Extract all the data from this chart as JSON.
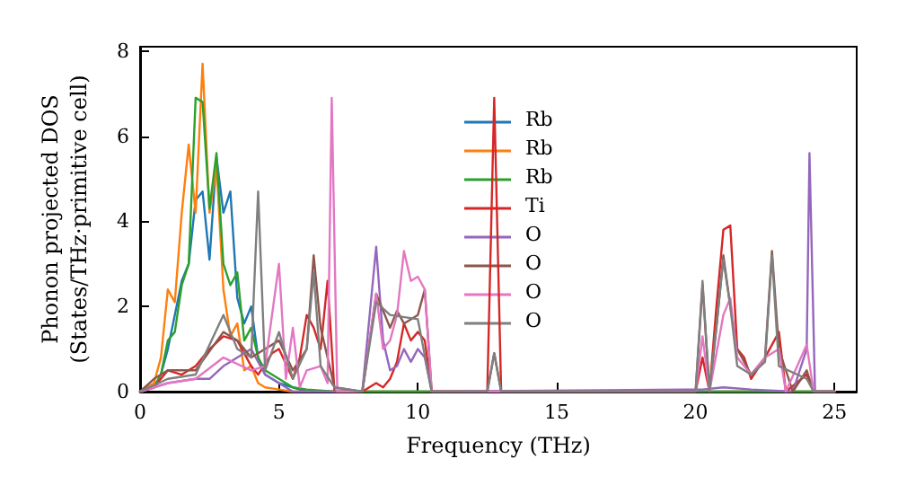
{
  "chart_data": {
    "type": "line",
    "xlabel": "Frequency (THz)",
    "ylabel": "Phonon projected DOS\n(States/THz·primitive cell)",
    "xlim": [
      0,
      25.8
    ],
    "ylim": [
      0,
      8.1
    ],
    "xticks": [
      0,
      5,
      10,
      15,
      20,
      25
    ],
    "yticks": [
      0,
      2,
      4,
      6,
      8
    ],
    "grid": false,
    "legend": "top",
    "marker": "none",
    "line_style": "solid",
    "series": [
      {
        "name": "Rb",
        "color": "#1f77b4",
        "x": [
          0,
          0.5,
          0.75,
          1,
          1.25,
          1.5,
          1.75,
          2,
          2.25,
          2.5,
          2.75,
          3,
          3.25,
          3.5,
          3.75,
          4,
          4.25,
          4.5,
          4.75,
          5,
          5.5,
          6,
          25
        ],
        "values": [
          0,
          0.1,
          0.4,
          1.0,
          1.8,
          2.6,
          3.0,
          4.5,
          4.7,
          3.1,
          5.5,
          4.2,
          4.7,
          2.2,
          1.6,
          2.0,
          0.8,
          0.4,
          0.3,
          0.2,
          0.1,
          0,
          0
        ]
      },
      {
        "name": "Rb",
        "color": "#ff7f0e",
        "x": [
          0,
          0.5,
          0.75,
          1,
          1.25,
          1.5,
          1.75,
          2,
          2.25,
          2.5,
          2.75,
          3,
          3.25,
          3.5,
          3.75,
          4,
          4.25,
          4.5,
          5,
          5.5,
          6,
          25
        ],
        "values": [
          0,
          0.2,
          0.8,
          2.4,
          2.1,
          4.2,
          5.8,
          4.2,
          7.7,
          4.2,
          5.3,
          2.4,
          1.3,
          1.6,
          0.5,
          0.6,
          0.2,
          0.1,
          0.05,
          0,
          0,
          0
        ]
      },
      {
        "name": "Rb",
        "color": "#2ca02c",
        "x": [
          0,
          0.5,
          0.75,
          1,
          1.25,
          1.5,
          1.75,
          2,
          2.25,
          2.5,
          2.75,
          3,
          3.25,
          3.5,
          3.75,
          4,
          4.25,
          4.5,
          5,
          5.5,
          6,
          7,
          25
        ],
        "values": [
          0,
          0.1,
          0.4,
          1.2,
          1.4,
          2.5,
          3.0,
          6.9,
          6.8,
          4.3,
          5.6,
          3.0,
          2.5,
          2.8,
          1.2,
          1.5,
          0.8,
          0.5,
          0.3,
          0.1,
          0.05,
          0,
          0
        ]
      },
      {
        "name": "Ti",
        "color": "#d62728",
        "x": [
          0,
          0.5,
          1,
          1.5,
          2,
          2.5,
          3,
          3.5,
          4,
          4.25,
          4.75,
          5,
          5.5,
          5.75,
          6,
          6.25,
          6.5,
          6.75,
          7,
          8,
          8.5,
          8.75,
          9,
          9.25,
          9.5,
          9.75,
          10,
          10.25,
          10.5,
          12.5,
          12.75,
          13,
          20,
          20.25,
          20.5,
          20.75,
          21,
          21.25,
          21.5,
          21.75,
          22,
          22.5,
          23,
          23.25,
          24,
          24.25,
          25
        ],
        "values": [
          0,
          0.1,
          0.5,
          0.4,
          0.6,
          1.0,
          1.3,
          1.2,
          0.6,
          0.4,
          0.9,
          1.0,
          0.3,
          0.8,
          1.8,
          1.5,
          1.0,
          2.6,
          0,
          0,
          0.2,
          0.1,
          0.3,
          0.7,
          1.6,
          1.2,
          1.4,
          1.2,
          0,
          0,
          6.9,
          0,
          0,
          0.8,
          0,
          2.0,
          3.8,
          3.9,
          1.0,
          0.8,
          0.3,
          0.8,
          1.4,
          0,
          0.4,
          0,
          0
        ]
      },
      {
        "name": "O",
        "color": "#9467bd",
        "x": [
          0,
          1,
          2,
          2.5,
          3,
          3.5,
          4,
          4.5,
          5,
          5.5,
          8,
          8.5,
          8.75,
          9,
          9.25,
          9.5,
          9.75,
          10,
          10.25,
          10.5,
          20.25,
          21,
          22,
          23.5,
          24,
          24.1,
          24.3,
          25
        ],
        "values": [
          0,
          0.2,
          0.3,
          0.3,
          0.6,
          0.8,
          1.0,
          0.4,
          0.2,
          0,
          0,
          3.4,
          1.2,
          0.5,
          0.6,
          1.0,
          0.7,
          1.0,
          0.8,
          0,
          0.05,
          0.1,
          0.05,
          0,
          1.0,
          5.6,
          0,
          0
        ]
      },
      {
        "name": "O",
        "color": "#8c564b",
        "x": [
          0,
          0.5,
          1,
          2,
          3,
          3.5,
          4,
          4.5,
          5,
          5.5,
          6,
          6.25,
          6.5,
          7,
          8,
          8.5,
          9,
          9.25,
          9.5,
          10,
          10.25,
          10.5,
          12.5,
          12.75,
          13,
          20,
          20.25,
          20.5,
          20.75,
          21,
          21.25,
          21.5,
          22,
          22.5,
          22.75,
          23,
          23.5,
          24,
          24.25,
          25
        ],
        "values": [
          0,
          0.3,
          0.5,
          0.5,
          1.4,
          1.2,
          0.8,
          1.0,
          1.2,
          0.5,
          1.0,
          3.2,
          1.5,
          0.1,
          0,
          2.3,
          1.5,
          1.9,
          1.6,
          1.8,
          2.4,
          0,
          0,
          0.9,
          0,
          0,
          2.5,
          0,
          1.5,
          3.2,
          2.0,
          1.0,
          0.4,
          0.8,
          3.3,
          1.0,
          0,
          0.5,
          0,
          0
        ]
      },
      {
        "name": "O",
        "color": "#e377c2",
        "x": [
          0,
          1,
          2,
          3,
          4,
          4.5,
          5,
          5.25,
          5.5,
          5.75,
          6,
          6.5,
          6.75,
          6.9,
          7.1,
          8,
          8.5,
          8.75,
          9,
          9.25,
          9.5,
          9.75,
          10,
          10.25,
          10.5,
          20,
          20.25,
          20.5,
          21,
          21.25,
          21.5,
          22,
          22.5,
          23,
          23.25,
          24,
          24.25,
          25
        ],
        "values": [
          0,
          0.2,
          0.3,
          0.8,
          0.5,
          0.6,
          3.0,
          0.3,
          1.5,
          0.1,
          0.5,
          0.6,
          0.2,
          6.9,
          0,
          0,
          2.3,
          1.0,
          1.2,
          1.8,
          3.3,
          2.6,
          2.7,
          2.4,
          0,
          0,
          1.3,
          0,
          1.8,
          2.2,
          0.8,
          0.4,
          0.8,
          1.0,
          0,
          1.1,
          0,
          0
        ]
      },
      {
        "name": "O",
        "color": "#7f7f7f",
        "x": [
          0,
          1,
          2,
          3,
          3.5,
          4,
          4.25,
          4.5,
          5,
          5.5,
          6,
          6.25,
          6.5,
          7,
          8,
          8.5,
          9,
          10,
          10.5,
          12.5,
          12.75,
          13,
          20,
          20.25,
          20.5,
          21,
          21.25,
          21.5,
          22,
          22.5,
          22.75,
          23,
          24,
          24.25,
          25
        ],
        "values": [
          0,
          0.3,
          0.4,
          1.8,
          1.0,
          0.8,
          4.7,
          0.5,
          1.4,
          0.3,
          1.0,
          2.8,
          0.6,
          0.1,
          0,
          2.1,
          1.8,
          1.7,
          0,
          0,
          0.9,
          0,
          0,
          2.6,
          0,
          3.1,
          2.0,
          0.6,
          0.4,
          0.7,
          3.2,
          0.6,
          0.3,
          0,
          0
        ]
      }
    ]
  }
}
